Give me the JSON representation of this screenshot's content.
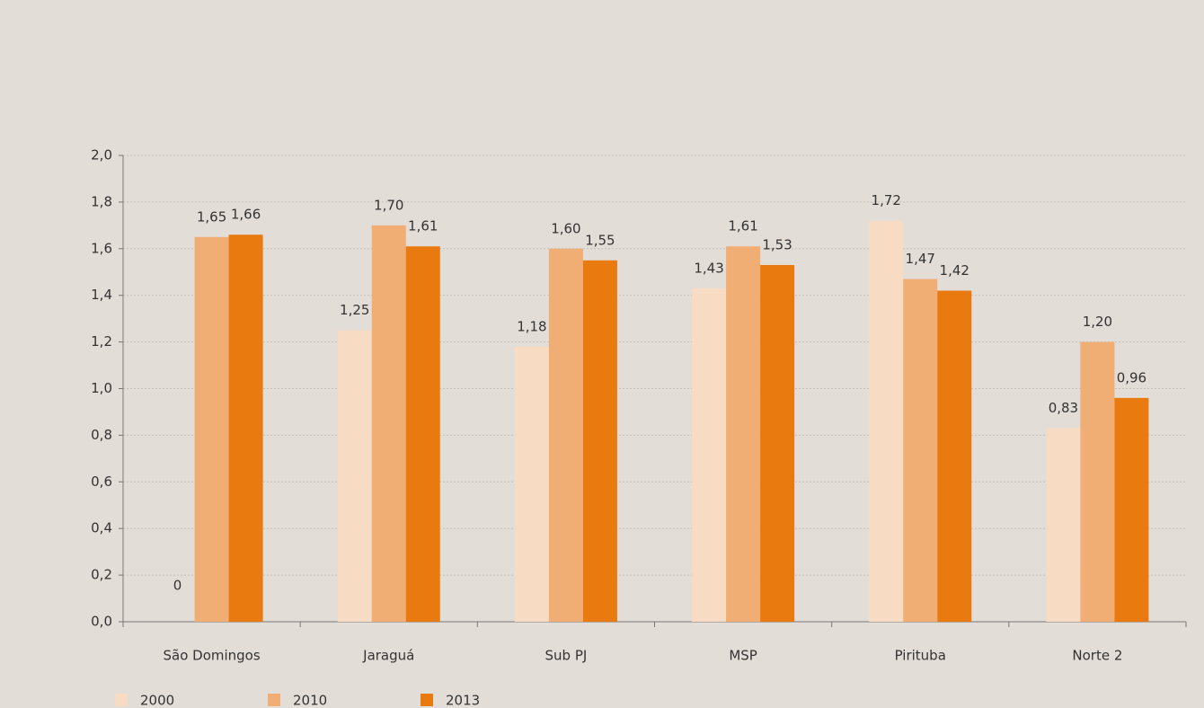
{
  "chart_data": {
    "type": "bar",
    "categories": [
      "São Domingos",
      "Jaraguá",
      "Sub PJ",
      "MSP",
      "Pirituba",
      "Norte 2"
    ],
    "series": [
      {
        "name": "2000",
        "color": "#f7dcc3",
        "values": [
          0,
          1.25,
          1.18,
          1.43,
          1.72,
          0.83
        ],
        "value_labels": [
          "0",
          "1,25",
          "1,18",
          "1,43",
          "1,72",
          "0,83"
        ]
      },
      {
        "name": "2010",
        "color": "#f0ad74",
        "values": [
          1.65,
          1.7,
          1.6,
          1.61,
          1.47,
          1.2
        ],
        "value_labels": [
          "1,65",
          "1,70",
          "1,60",
          "1,61",
          "1,47",
          "1,20"
        ]
      },
      {
        "name": "2013",
        "color": "#e87a10",
        "values": [
          1.66,
          1.61,
          1.55,
          1.53,
          1.42,
          0.96
        ],
        "value_labels": [
          "1,66",
          "1,61",
          "1,55",
          "1,53",
          "1,42",
          "0,96"
        ]
      }
    ],
    "ylim": [
      0,
      2.0
    ],
    "yticks": [
      {
        "value": 0,
        "label": "0,0"
      },
      {
        "value": 0.2,
        "label": "0,2"
      },
      {
        "value": 0.4,
        "label": "0,4"
      },
      {
        "value": 0.6,
        "label": "0,6"
      },
      {
        "value": 0.8,
        "label": "0,8"
      },
      {
        "value": 1.0,
        "label": "1,0"
      },
      {
        "value": 1.2,
        "label": "1,2"
      },
      {
        "value": 1.4,
        "label": "1,4"
      },
      {
        "value": 1.6,
        "label": "1,6"
      },
      {
        "value": 1.8,
        "label": "1,8"
      },
      {
        "value": 2.0,
        "label": "2,0"
      }
    ],
    "grid": true,
    "legend": "bottom"
  }
}
